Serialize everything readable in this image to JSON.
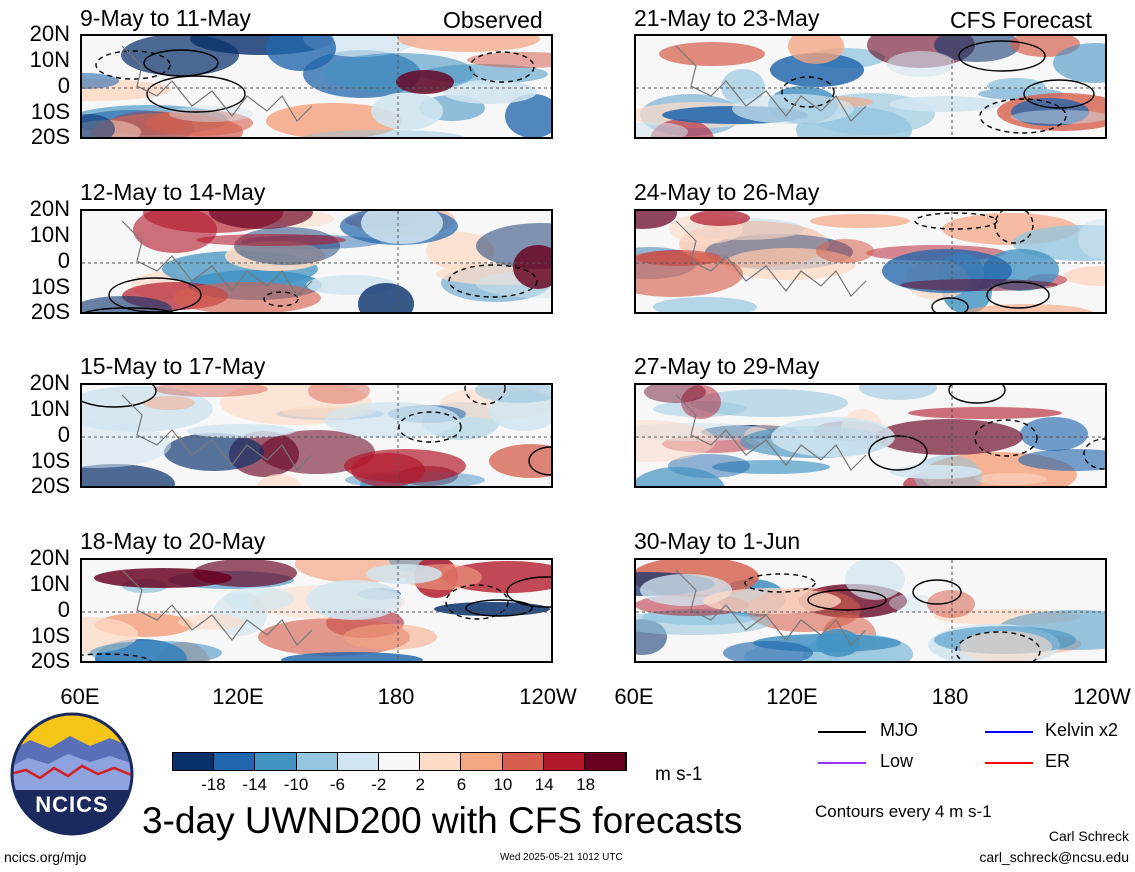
{
  "header": {
    "observed_label": "Observed",
    "forecast_label": "CFS Forecast"
  },
  "panels_left": [
    {
      "period": "9-May to 11-May"
    },
    {
      "period": "12-May to 14-May"
    },
    {
      "period": "15-May to 17-May"
    },
    {
      "period": "18-May to 20-May"
    }
  ],
  "panels_right": [
    {
      "period": "21-May to 23-May"
    },
    {
      "period": "24-May to 26-May"
    },
    {
      "period": "27-May to 29-May"
    },
    {
      "period": "30-May to 1-Jun"
    }
  ],
  "lat_labels": [
    "20N",
    "10N",
    "0",
    "10S",
    "20S"
  ],
  "lon_labels": [
    "60E",
    "120E",
    "180",
    "120W"
  ],
  "colorbar": {
    "ticks": [
      "-18",
      "-14",
      "-10",
      "-6",
      "-2",
      "2",
      "6",
      "10",
      "14",
      "18"
    ],
    "units": "m s-1",
    "colors": [
      "#08306b",
      "#2166ac",
      "#4393c3",
      "#92c5de",
      "#d1e5f0",
      "#f7f7f7",
      "#fddbc7",
      "#f4a582",
      "#d6604d",
      "#b2182b",
      "#67001f"
    ]
  },
  "legend": {
    "items": [
      {
        "label": "MJO",
        "color": "#000000"
      },
      {
        "label": "Kelvin x2",
        "color": "#0000ff"
      },
      {
        "label": "Low",
        "color": "#9b30ff"
      },
      {
        "label": "ER",
        "color": "#ff0000"
      }
    ],
    "contours_note": "Contours every 4 m s-1"
  },
  "footer": {
    "logo_text": "NCICS",
    "main_title": "3-day UWND200 with CFS forecasts",
    "url": "ncics.org/mjo",
    "timestamp": "Wed 2025-05-21 1012 UTC",
    "author": "Carl Schreck",
    "email": "carl_schreck@ncsu.edu"
  }
}
